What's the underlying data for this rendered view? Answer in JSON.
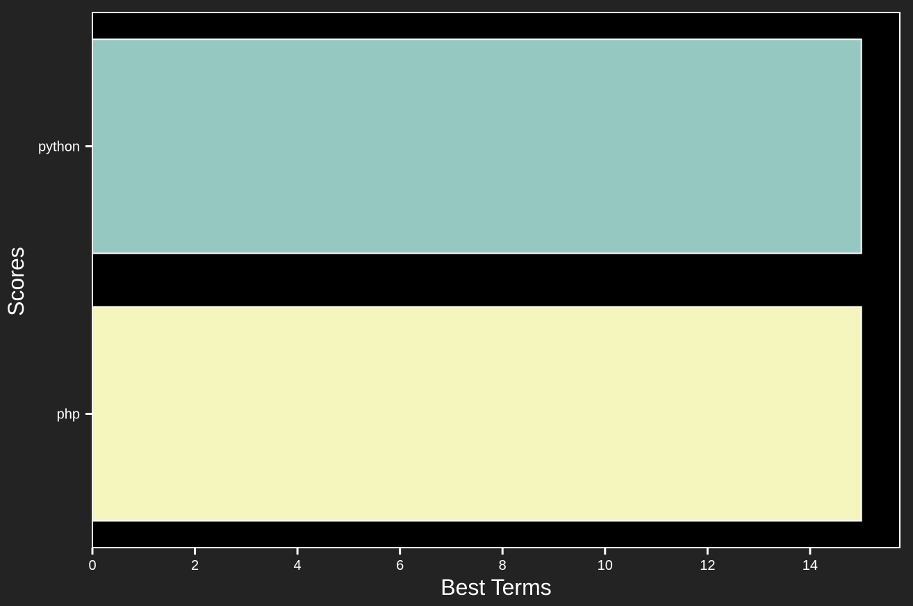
{
  "chart_data": {
    "type": "bar",
    "orientation": "horizontal",
    "categories": [
      "python",
      "php"
    ],
    "values": [
      15,
      15
    ],
    "colors": [
      "#96c8c2",
      "#f5f5be"
    ],
    "xlabel": "Best Terms",
    "ylabel": "Scores",
    "xlim": [
      0,
      15.75
    ],
    "xticks": [
      0,
      2,
      4,
      6,
      8,
      10,
      12,
      14
    ],
    "grid": false,
    "legend": "none",
    "theme": {
      "figure_background": "#232323",
      "plot_background": "#000000",
      "foreground": "#ffffff"
    }
  }
}
